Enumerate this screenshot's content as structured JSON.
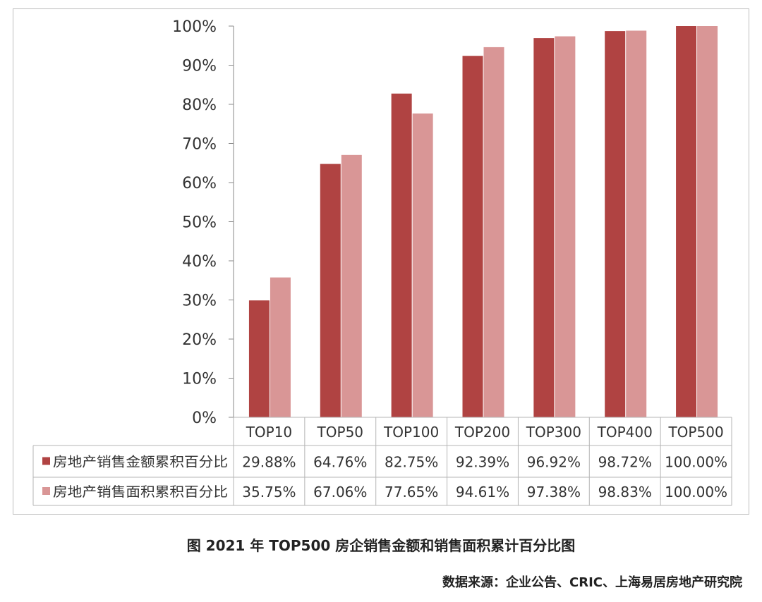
{
  "chart_data": {
    "type": "bar",
    "categories": [
      "TOP10",
      "TOP50",
      "TOP100",
      "TOP200",
      "TOP300",
      "TOP400",
      "TOP500"
    ],
    "series": [
      {
        "name": "房地产销售金额累积百分比",
        "values": [
          29.88,
          64.76,
          82.75,
          92.39,
          96.92,
          98.72,
          100.0
        ],
        "labels": [
          "29.88%",
          "64.76%",
          "82.75%",
          "92.39%",
          "96.92%",
          "98.72%",
          "100.00%"
        ],
        "color": "#b04342"
      },
      {
        "name": "房地产销售面积累积百分比",
        "values": [
          35.75,
          67.06,
          77.65,
          94.61,
          97.38,
          98.83,
          100.0
        ],
        "labels": [
          "35.75%",
          "67.06%",
          "77.65%",
          "94.61%",
          "97.38%",
          "98.83%",
          "100.00%"
        ],
        "color": "#d99696"
      }
    ],
    "ylim": [
      0,
      100
    ],
    "yticks": [
      "0%",
      "10%",
      "20%",
      "30%",
      "40%",
      "50%",
      "60%",
      "70%",
      "80%",
      "90%",
      "100%"
    ],
    "grid": false,
    "legend": "data-table",
    "title": "",
    "xlabel": "",
    "ylabel": ""
  },
  "caption": "图  2021 年 TOP500 房企销售金额和销售面积累计百分比图",
  "source": "数据来源：企业公告、CRIC、上海易居房地产研究院"
}
